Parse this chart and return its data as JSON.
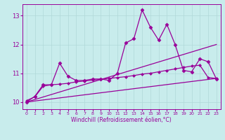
{
  "xlabel": "Windchill (Refroidissement éolien,°C)",
  "xlim": [
    -0.5,
    23.5
  ],
  "ylim": [
    9.75,
    13.4
  ],
  "yticks": [
    10,
    11,
    12,
    13
  ],
  "xticks": [
    0,
    1,
    2,
    3,
    4,
    5,
    6,
    7,
    8,
    9,
    10,
    11,
    12,
    13,
    14,
    15,
    16,
    17,
    18,
    19,
    20,
    21,
    22,
    23
  ],
  "bg_color": "#c8ecec",
  "grid_color": "#b0d8d8",
  "line_color": "#990099",
  "series": [
    {
      "x": [
        0,
        1,
        2,
        3,
        4,
        5,
        6,
        7,
        8,
        9,
        10,
        11,
        12,
        13,
        14,
        15,
        16,
        17,
        18,
        19,
        20,
        21,
        22,
        23
      ],
      "y": [
        10.0,
        10.2,
        10.6,
        10.6,
        11.35,
        10.9,
        10.75,
        10.75,
        10.8,
        10.8,
        10.75,
        11.0,
        12.05,
        12.2,
        13.2,
        12.6,
        12.15,
        12.7,
        12.0,
        11.1,
        11.05,
        11.5,
        11.4,
        10.8
      ],
      "marker": "D",
      "markersize": 2.5,
      "linewidth": 0.9
    },
    {
      "x": [
        0,
        1,
        2,
        3,
        4,
        5,
        6,
        7,
        8,
        9,
        10,
        11,
        12,
        13,
        14,
        15,
        16,
        17,
        18,
        19,
        20,
        21,
        22,
        23
      ],
      "y": [
        10.05,
        10.18,
        10.55,
        10.6,
        10.62,
        10.65,
        10.7,
        10.73,
        10.76,
        10.79,
        10.82,
        10.85,
        10.88,
        10.92,
        10.97,
        11.0,
        11.05,
        11.1,
        11.15,
        11.2,
        11.25,
        11.28,
        10.85,
        10.82
      ],
      "marker": "D",
      "markersize": 2.0,
      "linewidth": 0.9
    },
    {
      "x": [
        0,
        23
      ],
      "y": [
        10.0,
        12.0
      ],
      "marker": null,
      "markersize": 0,
      "linewidth": 0.9
    },
    {
      "x": [
        0,
        23
      ],
      "y": [
        10.0,
        10.82
      ],
      "marker": null,
      "markersize": 0,
      "linewidth": 0.9
    }
  ]
}
